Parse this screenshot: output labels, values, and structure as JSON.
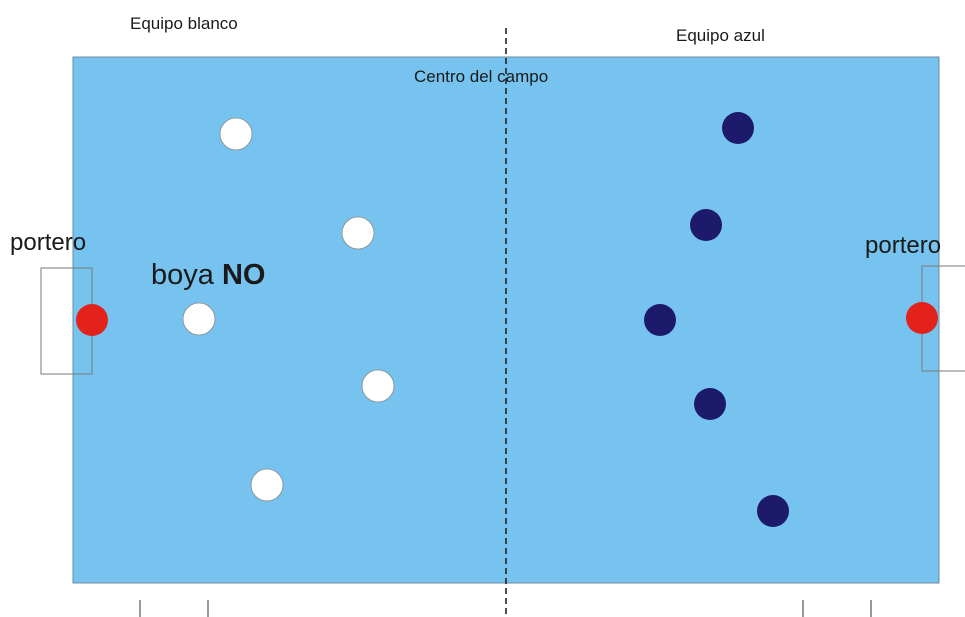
{
  "labels": {
    "team_white": "Equipo blanco",
    "team_blue": "Equipo azul",
    "center_field": "Centro del campo",
    "goalkeeper_left": "portero",
    "goalkeeper_right": "portero",
    "boya": "boya",
    "boya_no": "NO"
  },
  "colors": {
    "pool": "#75c3ee",
    "pool_border": "#6b8ea6",
    "white_team": "#ffffff",
    "blue_team": "#1e1a6b",
    "goalkeeper": "#e3231b",
    "center_line": "#222222",
    "goal_frame": "#7a7a7a",
    "marks": "#9a9a9a"
  },
  "players": {
    "white_team_count": 5,
    "blue_team_count": 5,
    "goalkeepers": 2
  }
}
